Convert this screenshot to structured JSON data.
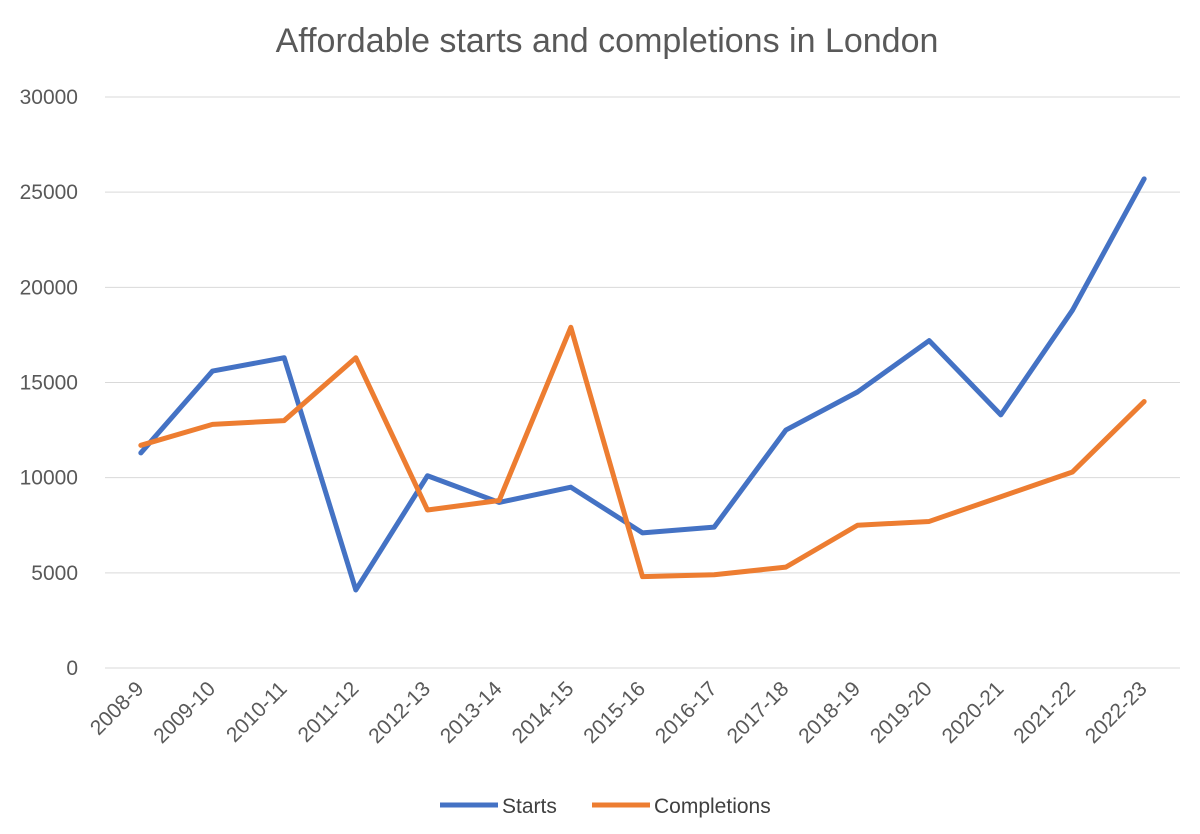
{
  "chart_data": {
    "type": "line",
    "title": "Affordable starts and completions in London",
    "xlabel": "",
    "ylabel": "",
    "ylim": [
      0,
      30000
    ],
    "yticks": [
      0,
      5000,
      10000,
      15000,
      20000,
      25000,
      30000
    ],
    "grid": true,
    "legend_position": "bottom",
    "categories": [
      "2008-9",
      "2009-10",
      "2010-11",
      "2011-12",
      "2012-13",
      "2013-14",
      "2014-15",
      "2015-16",
      "2016-17",
      "2017-18",
      "2018-19",
      "2019-20",
      "2020-21",
      "2021-22",
      "2022-23"
    ],
    "series": [
      {
        "name": "Starts",
        "color": "#4472C4",
        "values": [
          11300,
          15600,
          16300,
          4100,
          10100,
          8700,
          9500,
          7100,
          7400,
          12500,
          14500,
          17200,
          13300,
          18800,
          25700
        ]
      },
      {
        "name": "Completions",
        "color": "#ED7D31",
        "values": [
          11700,
          12800,
          13000,
          16300,
          8300,
          8800,
          17900,
          4800,
          4900,
          5300,
          7500,
          7700,
          9000,
          10300,
          14000
        ]
      }
    ]
  }
}
